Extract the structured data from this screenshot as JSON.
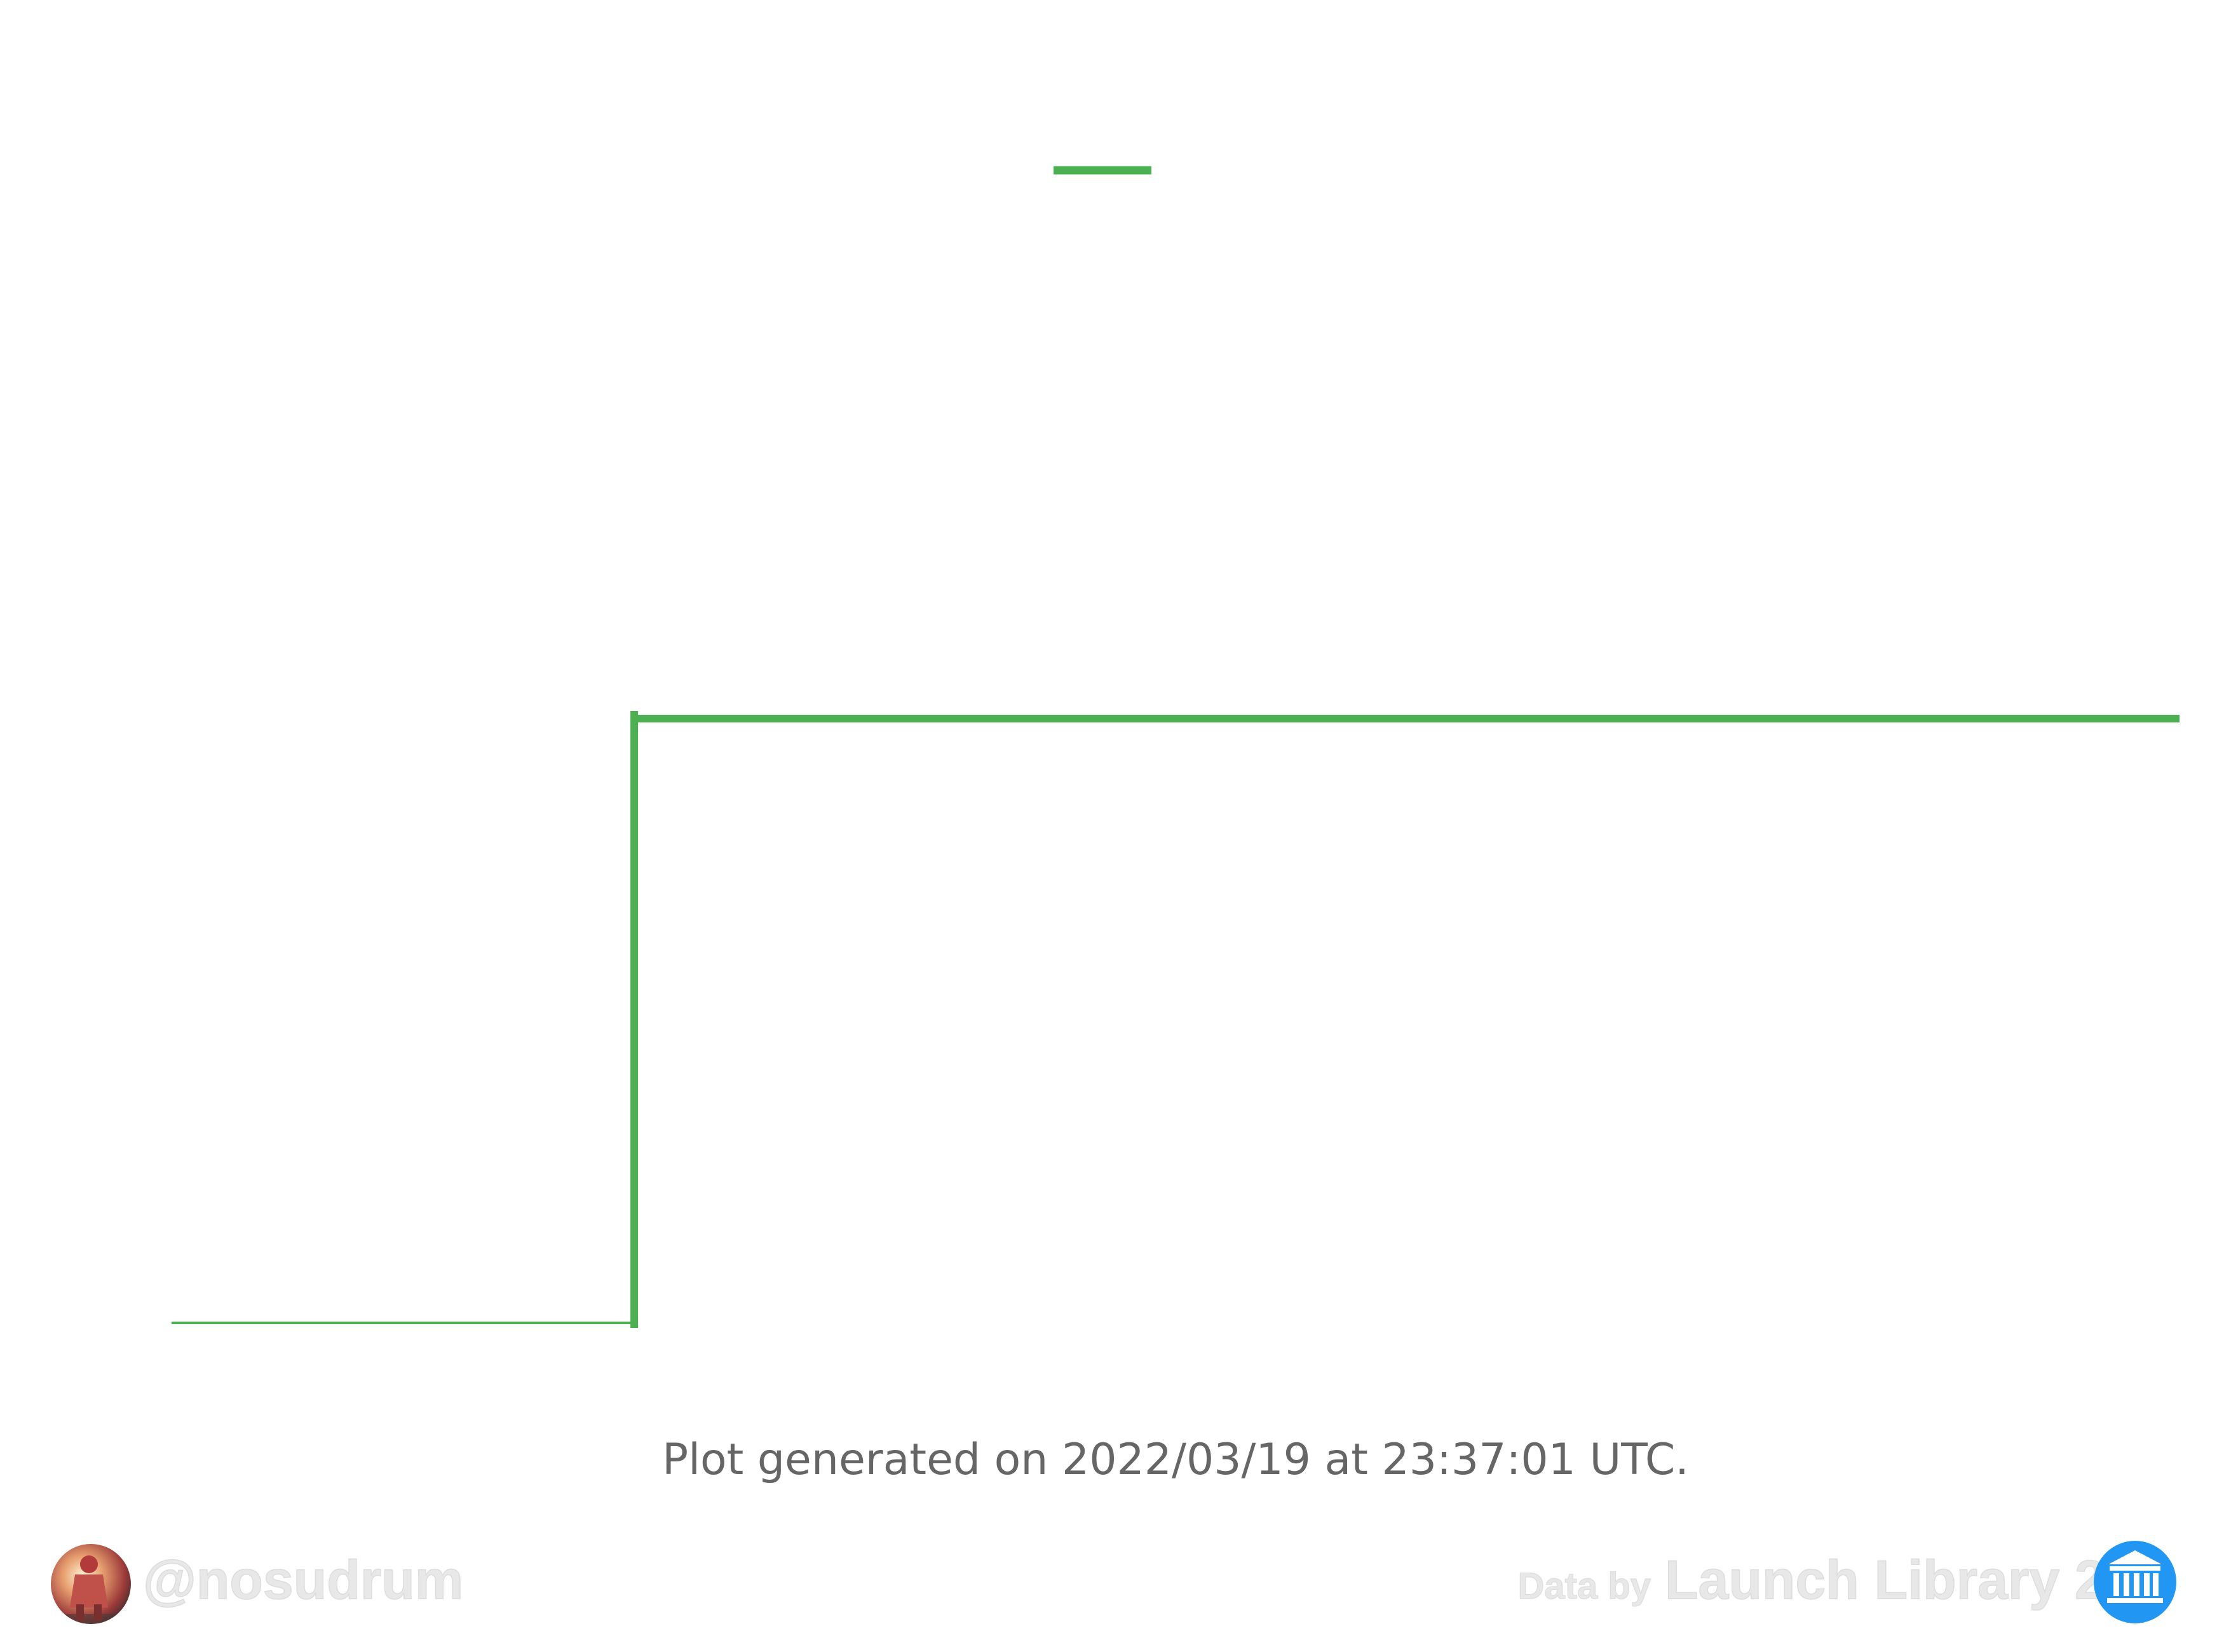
{
  "chart_data": {
    "type": "line",
    "drawstyle": "steps-post",
    "series": [
      {
        "color": "#4caf50",
        "x": [
          0,
          1,
          4.34
        ],
        "y": [
          0,
          1,
          1
        ]
      }
    ],
    "legend": {
      "placement": "top-center",
      "entries": [
        {
          "color": "#4caf50",
          "label": ""
        }
      ]
    },
    "xlim": [
      0,
      4.34
    ],
    "ylim": [
      0,
      1
    ],
    "grid": false,
    "title": "",
    "xlabel": "",
    "ylabel": ""
  },
  "footer": {
    "generated_text": "Plot generated on 2022/03/19 at 23:37:01 UTC.",
    "text_color": "#666666"
  },
  "watermarks": {
    "author_handle": "@nosudrum",
    "data_by_prefix": "Data by",
    "data_source": "Launch Library 2",
    "watermark_color": "#e8e8e8",
    "author_avatar_icon": "astronaut-avatar-icon",
    "source_logo_icon": "institution-icon",
    "source_logo_color": "#2196f3"
  }
}
